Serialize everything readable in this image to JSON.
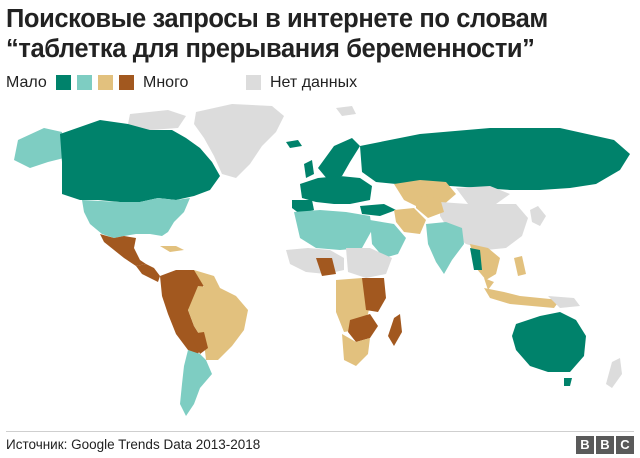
{
  "title": "Поисковые запросы в интернете по словам “таблетка для прерывания беременности”",
  "legend": {
    "low_label": "Мало",
    "high_label": "Много",
    "no_data_label": "Нет данных",
    "scale_colors": [
      "#00826b",
      "#7ecdc2",
      "#e2c17e",
      "#a2581f"
    ],
    "no_data_color": "#dcdcdc"
  },
  "source": "Источник: Google Trends Data 2013-2018",
  "logo": {
    "letters": [
      "B",
      "B",
      "C"
    ]
  }
}
